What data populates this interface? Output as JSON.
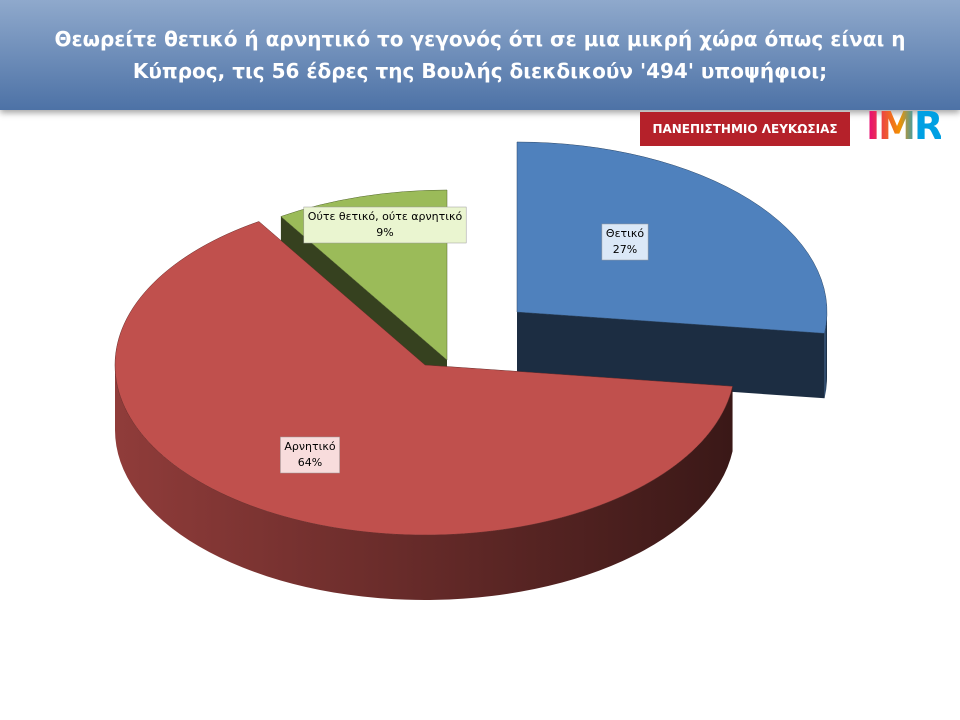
{
  "chart_data": {
    "type": "pie3d",
    "title": "Θεωρείτε θετικό ή αρνητικό το γεγονός ότι σε μια μικρή χώρα όπως είναι η Κύπρος, τις 56 έδρες της Βουλής διεκδικούν  '494' υποψήφιοι;",
    "categories": [
      "Θετικό",
      "Αρνητικό",
      "Ούτε θετικό, ούτε αρνητικό"
    ],
    "values": [
      27,
      64,
      9
    ],
    "value_labels": [
      "27%",
      "64%",
      "9%"
    ],
    "colors": [
      "#4f81bd",
      "#c0504d",
      "#9bbb59"
    ]
  },
  "logos": {
    "university": "ΠΑΝΕΠΙΣΤΗΜΙΟ ΛΕΥΚΩΣΙΑΣ",
    "imr": "IMR"
  }
}
